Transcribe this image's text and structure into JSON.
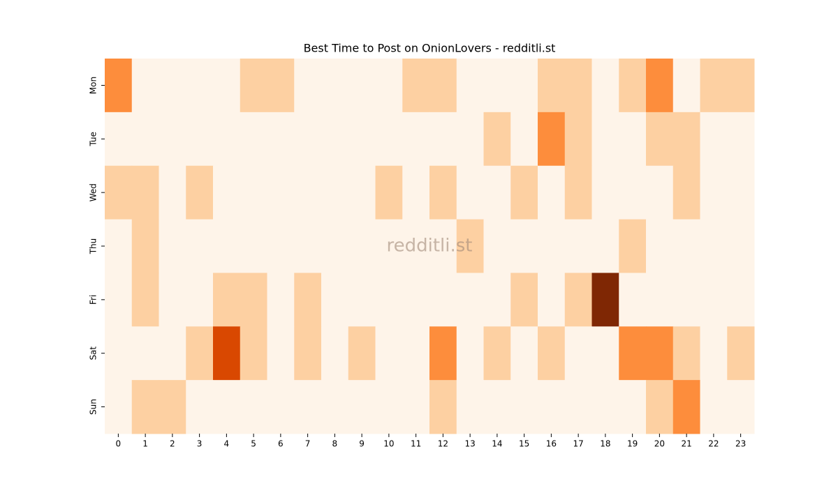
{
  "chart_data": {
    "type": "heatmap",
    "title": "Best Time to Post on OnionLovers - redditli.st",
    "annotation": "redditli.st",
    "x_categories": [
      "0",
      "1",
      "2",
      "3",
      "4",
      "5",
      "6",
      "7",
      "8",
      "9",
      "10",
      "11",
      "12",
      "13",
      "14",
      "15",
      "16",
      "17",
      "18",
      "19",
      "20",
      "21",
      "22",
      "23"
    ],
    "y_categories": [
      "Mon",
      "Tue",
      "Wed",
      "Thu",
      "Fri",
      "Sat",
      "Sun"
    ],
    "values": [
      [
        2,
        0,
        0,
        0,
        0,
        1,
        1,
        0,
        0,
        0,
        0,
        1,
        1,
        0,
        0,
        0,
        1,
        1,
        0,
        1,
        2,
        0,
        1,
        1
      ],
      [
        0,
        0,
        0,
        0,
        0,
        0,
        0,
        0,
        0,
        0,
        0,
        0,
        0,
        0,
        1,
        0,
        2,
        1,
        0,
        0,
        1,
        1,
        0,
        0
      ],
      [
        1,
        1,
        0,
        1,
        0,
        0,
        0,
        0,
        0,
        0,
        1,
        0,
        1,
        0,
        0,
        1,
        0,
        1,
        0,
        0,
        0,
        1,
        0,
        0
      ],
      [
        0,
        1,
        0,
        0,
        0,
        0,
        0,
        0,
        0,
        0,
        0,
        0,
        0,
        1,
        0,
        0,
        0,
        0,
        0,
        1,
        0,
        0,
        0,
        0
      ],
      [
        0,
        1,
        0,
        0,
        1,
        1,
        0,
        1,
        0,
        0,
        0,
        0,
        0,
        0,
        0,
        1,
        0,
        1,
        4,
        0,
        0,
        0,
        0,
        0
      ],
      [
        0,
        0,
        0,
        1,
        3,
        1,
        0,
        1,
        0,
        1,
        0,
        0,
        2,
        0,
        1,
        0,
        1,
        0,
        0,
        2,
        2,
        1,
        0,
        1
      ],
      [
        0,
        1,
        1,
        0,
        0,
        0,
        0,
        0,
        0,
        0,
        0,
        0,
        1,
        0,
        0,
        0,
        0,
        0,
        0,
        0,
        1,
        2,
        0,
        0
      ]
    ],
    "colorscale": [
      "#fef4e9",
      "#fdd0a2",
      "#fd8d3c",
      "#d94801",
      "#7f2704"
    ]
  }
}
